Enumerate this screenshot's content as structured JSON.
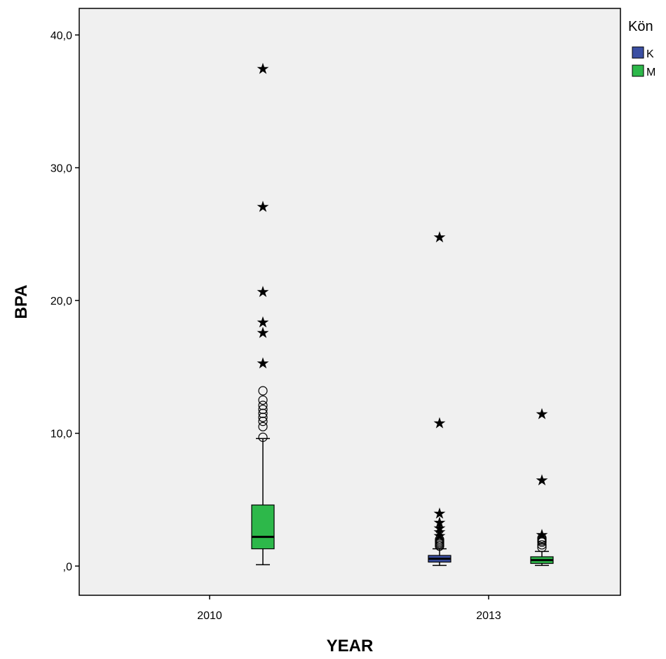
{
  "chart_data": {
    "type": "boxplot",
    "xlabel": "YEAR",
    "ylabel": "BPA",
    "ylim": [
      -2.2,
      42.0
    ],
    "yticks": [
      0,
      10,
      20,
      30,
      40
    ],
    "ytick_labels": [
      ",0",
      "10,0",
      "20,0",
      "30,0",
      "40,0"
    ],
    "categories": [
      "2010",
      "2013"
    ],
    "legend": {
      "title": "Kön",
      "position": "top-right",
      "entries": [
        {
          "label": "K",
          "color": "#3b4fa3"
        },
        {
          "label": "M",
          "color": "#2db84a"
        }
      ]
    },
    "background_color": "#f0f0f0",
    "grid": false,
    "boxes": [
      {
        "category": "2010",
        "group": "M",
        "color": "#2db84a",
        "whisker_low": 0.1,
        "q1": 1.3,
        "median": 2.2,
        "q3": 4.6,
        "whisker_high": 9.6,
        "outliers": [
          9.7,
          10.5,
          10.9,
          11.2,
          11.5,
          11.8,
          12.1,
          12.5,
          13.2
        ],
        "extremes": [
          15.3,
          17.6,
          18.4,
          20.7,
          27.1,
          37.5
        ]
      },
      {
        "category": "2013",
        "group": "K",
        "color": "#3b4fa3",
        "whisker_low": 0.05,
        "q1": 0.3,
        "median": 0.55,
        "q3": 0.8,
        "whisker_high": 1.3,
        "outliers": [
          1.5,
          1.6,
          1.7,
          1.8,
          1.9,
          2.0
        ],
        "extremes": [
          2.3,
          2.6,
          2.9,
          3.3,
          4.0,
          10.8,
          24.8
        ]
      },
      {
        "category": "2013",
        "group": "M",
        "color": "#2db84a",
        "whisker_low": 0.05,
        "q1": 0.2,
        "median": 0.45,
        "q3": 0.7,
        "whisker_high": 1.1,
        "outliers": [
          1.4,
          1.6,
          1.8,
          1.9,
          2.0,
          2.1
        ],
        "extremes": [
          2.4,
          6.5,
          11.5
        ]
      }
    ]
  }
}
